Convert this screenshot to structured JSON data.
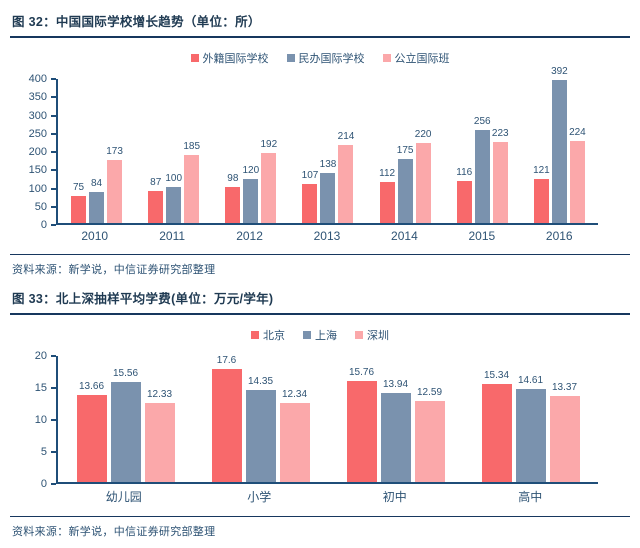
{
  "colors": {
    "accent_red": "#F8696B",
    "accent_bluegray": "#7A92AE",
    "accent_pink": "#FBA8AA",
    "axis_line": "#1F4E79",
    "rule_line": "#17375E",
    "text_navy": "#2E5374"
  },
  "chart_data": [
    {
      "type": "bar",
      "title": "图 32：中国国际学校增长趋势（单位：所）",
      "source": "资料来源：新学说，中信证券研究部整理",
      "categories": [
        "2010",
        "2011",
        "2012",
        "2013",
        "2014",
        "2015",
        "2016"
      ],
      "series": [
        {
          "name": "外籍国际学校",
          "color": "#F8696B",
          "values": [
            75,
            87,
            98,
            107,
            112,
            116,
            121
          ]
        },
        {
          "name": "民办国际学校",
          "color": "#7A92AE",
          "values": [
            84,
            100,
            120,
            138,
            175,
            256,
            392
          ]
        },
        {
          "name": "公立国际班",
          "color": "#FBA8AA",
          "values": [
            173,
            185,
            192,
            214,
            220,
            223,
            224
          ]
        }
      ],
      "xlabel": "",
      "ylabel": "",
      "ylim": [
        0,
        400
      ],
      "ytick_step": 50,
      "grid": false,
      "legend_position": "top"
    },
    {
      "type": "bar",
      "title": "图 33：北上深抽样平均学费(单位：万元/学年)",
      "source": "资料来源：新学说，中信证券研究部整理",
      "categories": [
        "幼儿园",
        "小学",
        "初中",
        "高中"
      ],
      "series": [
        {
          "name": "北京",
          "color": "#F8696B",
          "values": [
            13.66,
            17.6,
            15.76,
            15.34
          ]
        },
        {
          "name": "上海",
          "color": "#7A92AE",
          "values": [
            15.56,
            14.35,
            13.94,
            14.61
          ]
        },
        {
          "name": "深圳",
          "color": "#FBA8AA",
          "values": [
            12.33,
            12.34,
            12.59,
            13.37
          ]
        }
      ],
      "xlabel": "",
      "ylabel": "",
      "ylim": [
        0,
        20
      ],
      "ytick_step": 5,
      "grid": false,
      "legend_position": "top"
    }
  ]
}
